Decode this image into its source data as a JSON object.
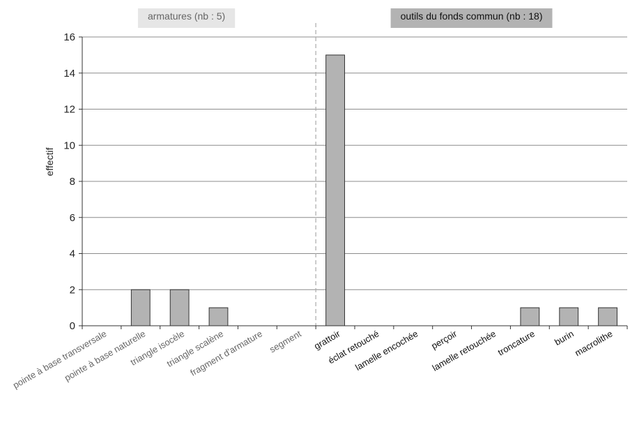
{
  "chart_data": {
    "type": "bar",
    "ylabel": "effectif",
    "ylim": [
      0,
      16
    ],
    "yticks": [
      0,
      2,
      4,
      6,
      8,
      10,
      12,
      14,
      16
    ],
    "grid": true,
    "categories": [
      "pointe à base transversale",
      "pointe à base naturelle",
      "triangle isocèle",
      "triangle scalène",
      "fragment d'armature",
      "segment",
      "grattoir",
      "éclat retouché",
      "lamelle encochée",
      "perçoir",
      "lamelle retouchée",
      "troncature",
      "burin",
      "macrolithe"
    ],
    "values": [
      0,
      2,
      2,
      1,
      0,
      0,
      15,
      0,
      0,
      0,
      0,
      1,
      1,
      1
    ],
    "groups": [
      {
        "label": "armatures (nb : 5)",
        "start": 0,
        "end": 5,
        "label_color": "#666666",
        "box_color": "#e6e6e6"
      },
      {
        "label": "outils du fonds commun (nb : 18)",
        "start": 6,
        "end": 13,
        "label_color": "#111111",
        "box_color": "#b3b3b3"
      }
    ],
    "bar_color": "#b3b3b3"
  }
}
